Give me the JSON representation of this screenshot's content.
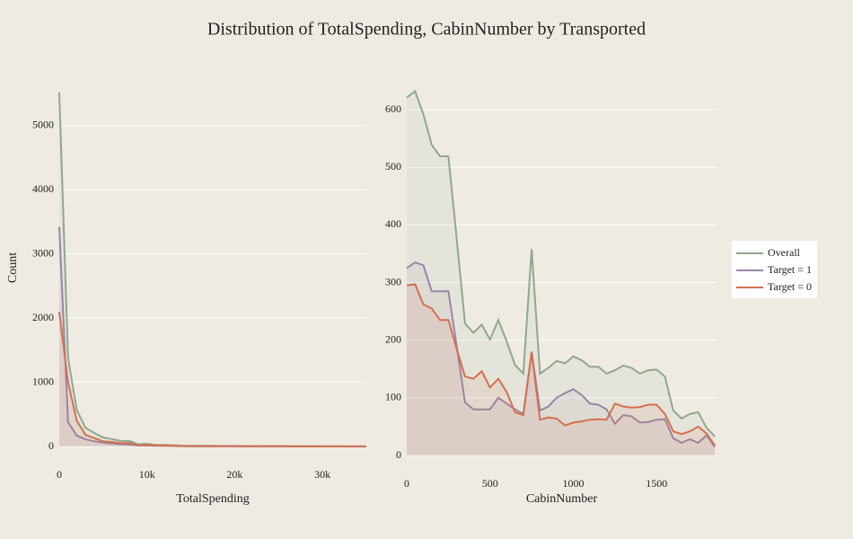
{
  "title": "Distribution of TotalSpending, CabinNumber by Transported",
  "chart_data": [
    {
      "type": "line",
      "x_label": "TotalSpending",
      "y_label": "Count",
      "x": [
        0,
        1000,
        2000,
        3000,
        4000,
        5000,
        6000,
        7000,
        8000,
        9000,
        10000,
        11000,
        12000,
        13000,
        14000,
        15000,
        16000,
        17000,
        18000,
        19000,
        20000,
        21000,
        22000,
        23000,
        24000,
        25000,
        26000,
        27000,
        28000,
        29000,
        30000,
        31000,
        32000,
        33000,
        34000,
        35000
      ],
      "series": [
        {
          "color": "#8fa88f",
          "values": [
            5520,
            1380,
            570,
            290,
            210,
            140,
            115,
            85,
            85,
            35,
            40,
            25,
            25,
            20,
            12,
            10,
            10,
            10,
            8,
            8,
            8,
            6,
            5,
            5,
            4,
            4,
            4,
            3,
            3,
            3,
            2,
            2,
            2,
            1,
            1,
            1
          ]
        },
        {
          "color": "#9a85a8",
          "values": [
            3420,
            380,
            170,
            110,
            80,
            60,
            45,
            35,
            30,
            15,
            15,
            10,
            10,
            8,
            5,
            4,
            4,
            4,
            3,
            3,
            3,
            2,
            2,
            2,
            1,
            1,
            1,
            1,
            1,
            1,
            1,
            1,
            1,
            0,
            0,
            0
          ]
        },
        {
          "color": "#d4704f",
          "values": [
            2100,
            1000,
            400,
            180,
            130,
            80,
            70,
            50,
            55,
            20,
            25,
            15,
            15,
            12,
            7,
            6,
            6,
            6,
            5,
            5,
            5,
            4,
            3,
            3,
            3,
            3,
            3,
            2,
            2,
            2,
            1,
            1,
            1,
            1,
            1,
            1
          ]
        }
      ],
      "xlim": [
        0,
        35000
      ],
      "ylim": [
        0,
        5700
      ],
      "xticks": [
        0,
        {
          "value": 10000,
          "label": "10k"
        },
        {
          "value": 20000,
          "label": "20k"
        },
        {
          "value": 30000,
          "label": "30k"
        }
      ],
      "yticks": [
        0,
        1000,
        2000,
        3000,
        4000,
        5000
      ],
      "grid": true
    },
    {
      "type": "line",
      "x_label": "CabinNumber",
      "x": [
        0,
        50,
        100,
        150,
        200,
        250,
        300,
        350,
        400,
        450,
        500,
        550,
        600,
        650,
        700,
        750,
        800,
        850,
        900,
        950,
        1000,
        1050,
        1100,
        1150,
        1200,
        1250,
        1300,
        1350,
        1400,
        1450,
        1500,
        1550,
        1600,
        1650,
        1700,
        1750,
        1800,
        1850
      ],
      "series": [
        {
          "name": "Overall",
          "color": "#8fa88f",
          "values": [
            621,
            632,
            592,
            539,
            519,
            519,
            377,
            229,
            213,
            227,
            201,
            235,
            198,
            157,
            142,
            358,
            142,
            152,
            164,
            160,
            172,
            165,
            154,
            154,
            142,
            148,
            156,
            152,
            142,
            148,
            149,
            137,
            78,
            64,
            72,
            75,
            48,
            33
          ]
        },
        {
          "name": "Target = 1",
          "color": "#9a85a8",
          "values": [
            325,
            335,
            330,
            285,
            285,
            285,
            190,
            92,
            80,
            80,
            80,
            100,
            90,
            80,
            72,
            180,
            78,
            85,
            100,
            108,
            115,
            105,
            90,
            88,
            80,
            55,
            70,
            68,
            57,
            58,
            62,
            63,
            30,
            22,
            28,
            22,
            35,
            15
          ]
        },
        {
          "name": "Target = 0",
          "color": "#d4704f",
          "values": [
            295,
            297,
            262,
            255,
            235,
            235,
            185,
            137,
            133,
            146,
            118,
            133,
            110,
            75,
            70,
            178,
            62,
            66,
            64,
            52,
            57,
            59,
            62,
            63,
            62,
            90,
            85,
            83,
            84,
            88,
            88,
            72,
            42,
            37,
            42,
            50,
            38,
            17
          ]
        }
      ],
      "xlim": [
        0,
        1860
      ],
      "ylim": [
        0,
        650
      ],
      "xticks": [
        0,
        500,
        1000,
        1500
      ],
      "yticks": [
        0,
        100,
        200,
        300,
        400,
        500,
        600
      ],
      "grid": true
    }
  ]
}
